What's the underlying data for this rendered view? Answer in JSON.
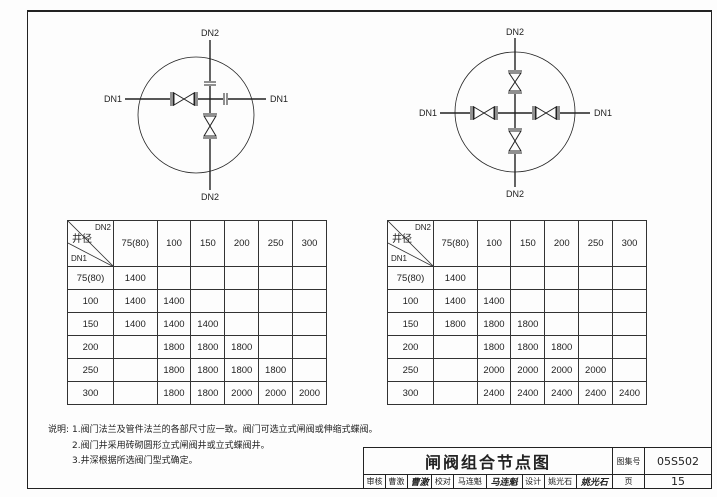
{
  "diagram_left": {
    "top_label": "DN2",
    "bottom_label": "DN2",
    "left_label": "DN1",
    "right_label": "DN1"
  },
  "diagram_right": {
    "top_label": "DN2",
    "bottom_label": "DN2",
    "left_label": "DN1",
    "right_label": "DN1"
  },
  "table_left": {
    "corner": {
      "main": "井径",
      "col_axis": "DN2",
      "row_axis": "DN1"
    },
    "columns": [
      "75(80)",
      "100",
      "150",
      "200",
      "250",
      "300"
    ],
    "rows": [
      {
        "dn1": "75(80)",
        "values": [
          "1400",
          "",
          "",
          "",
          "",
          ""
        ]
      },
      {
        "dn1": "100",
        "values": [
          "1400",
          "1400",
          "",
          "",
          "",
          ""
        ]
      },
      {
        "dn1": "150",
        "values": [
          "1400",
          "1400",
          "1400",
          "",
          "",
          ""
        ]
      },
      {
        "dn1": "200",
        "values": [
          "",
          "1800",
          "1800",
          "1800",
          "",
          ""
        ]
      },
      {
        "dn1": "250",
        "values": [
          "",
          "1800",
          "1800",
          "1800",
          "1800",
          ""
        ]
      },
      {
        "dn1": "300",
        "values": [
          "",
          "1800",
          "1800",
          "2000",
          "2000",
          "2000"
        ]
      }
    ]
  },
  "table_right": {
    "corner": {
      "main": "井径",
      "col_axis": "DN2",
      "row_axis": "DN1"
    },
    "columns": [
      "75(80)",
      "100",
      "150",
      "200",
      "250",
      "300"
    ],
    "rows": [
      {
        "dn1": "75(80)",
        "values": [
          "1400",
          "",
          "",
          "",
          "",
          ""
        ]
      },
      {
        "dn1": "100",
        "values": [
          "1400",
          "1400",
          "",
          "",
          "",
          ""
        ]
      },
      {
        "dn1": "150",
        "values": [
          "1800",
          "1800",
          "1800",
          "",
          "",
          ""
        ]
      },
      {
        "dn1": "200",
        "values": [
          "",
          "1800",
          "1800",
          "1800",
          "",
          ""
        ]
      },
      {
        "dn1": "250",
        "values": [
          "",
          "2000",
          "2000",
          "2000",
          "2000",
          ""
        ]
      },
      {
        "dn1": "300",
        "values": [
          "",
          "2400",
          "2400",
          "2400",
          "2400",
          "2400"
        ]
      }
    ]
  },
  "notes": {
    "label": "说明:",
    "items": [
      "1.阀门法兰及管件法兰的各部尺寸应一致。阀门可选立式闸阀或伸缩式蝶阀。",
      "2.阀门井采用砖砌圆形立式闸阀井或立式蝶阀井。",
      "3.井深根据所选阀门型式确定。"
    ]
  },
  "title_block": {
    "title": "闸阀组合节点图",
    "atlas_label": "图集号",
    "atlas_no": "05S502",
    "page_label": "页",
    "page_no": "15",
    "review_label": "审核",
    "reviewer": "曹激",
    "reviewer_sig": "曹激",
    "check_label": "校对",
    "checker": "马连魁",
    "checker_sig": "马连魁",
    "design_label": "设计",
    "designer": "姚光石",
    "designer_sig": "姚光石"
  }
}
